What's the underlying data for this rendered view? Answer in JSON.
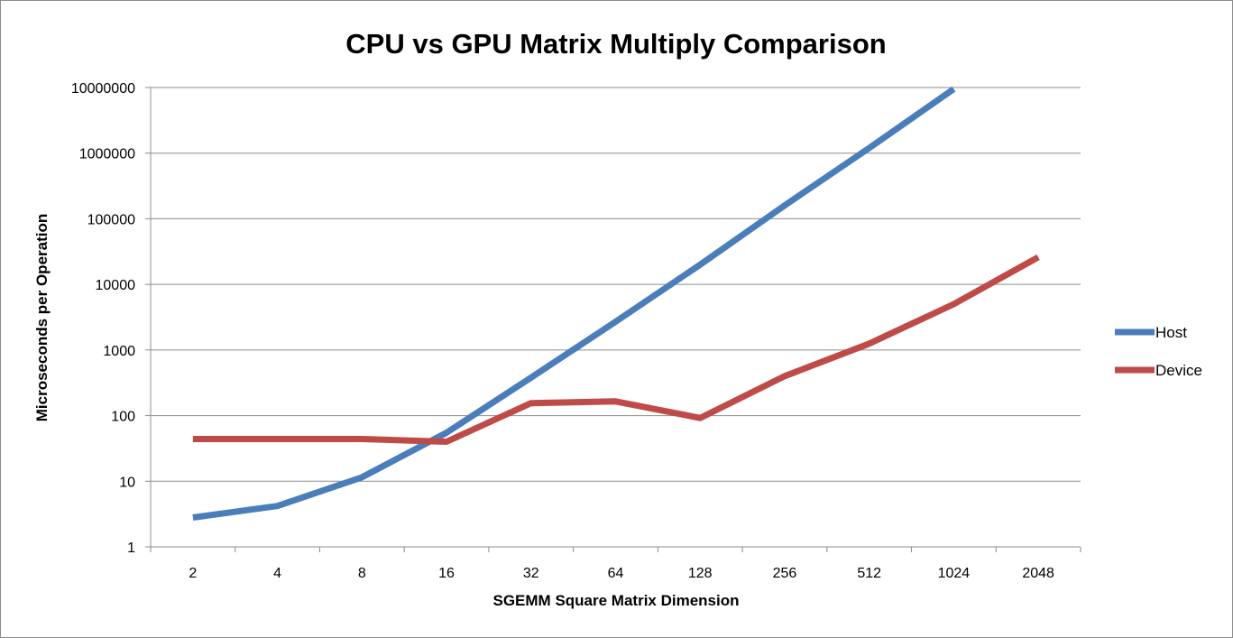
{
  "chart_data": {
    "type": "line",
    "title": "CPU vs GPU Matrix Multiply Comparison",
    "xlabel": "SGEMM Square Matrix Dimension",
    "ylabel": "Microseconds per Operation",
    "yscale": "log",
    "ylim": [
      1,
      10000000
    ],
    "grid": true,
    "legend_position": "right",
    "categories": [
      "2",
      "4",
      "8",
      "16",
      "32",
      "64",
      "128",
      "256",
      "512",
      "1024",
      "2048"
    ],
    "y_ticks": [
      "1",
      "10",
      "100",
      "1000",
      "10000",
      "100000",
      "1000000",
      "10000000"
    ],
    "series": [
      {
        "name": "Host",
        "color": "#4a7ebb",
        "values": [
          2.8,
          4.2,
          11.5,
          55,
          380,
          2700,
          20000,
          160000,
          1200000,
          9500000,
          null
        ]
      },
      {
        "name": "Device",
        "color": "#be4b48",
        "values": [
          44,
          44,
          44,
          40,
          155,
          165,
          92,
          400,
          1250,
          5000,
          26000
        ]
      }
    ]
  }
}
